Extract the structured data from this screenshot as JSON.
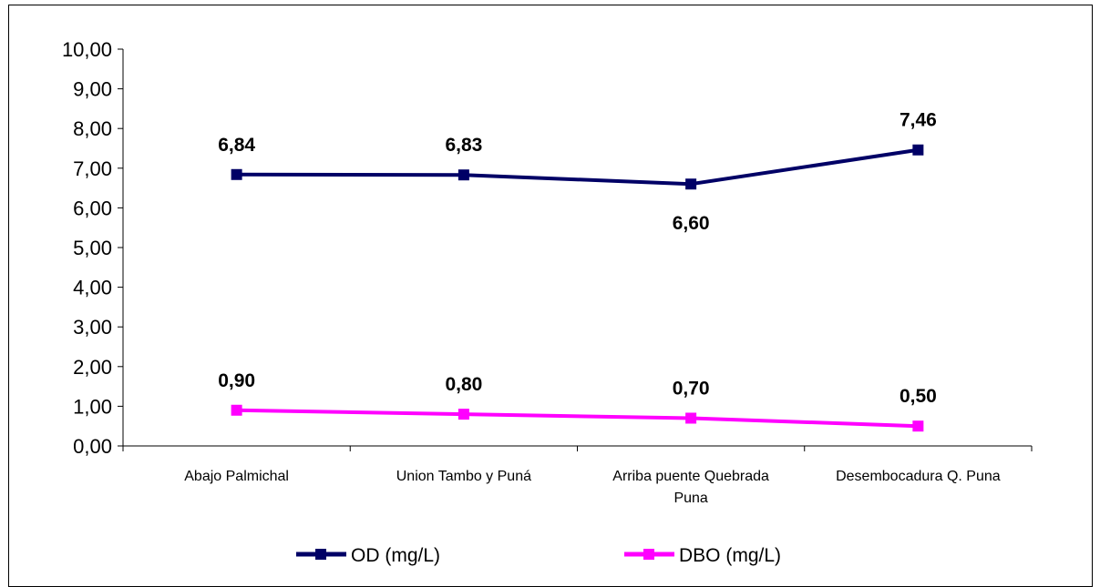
{
  "chart_data": {
    "type": "line",
    "categories": [
      [
        "Abajo Palmichal"
      ],
      [
        "Union Tambo y Puná"
      ],
      [
        "Arriba puente Quebrada",
        "Puna"
      ],
      [
        "Desembocadura Q. Puna"
      ]
    ],
    "series": [
      {
        "name": "OD (mg/L)",
        "color": "#000066",
        "values": [
          6.84,
          6.83,
          6.6,
          7.46
        ],
        "labels": [
          "6,84",
          "6,83",
          "6,60",
          "7,46"
        ],
        "label_position": [
          "above",
          "above",
          "below",
          "above"
        ]
      },
      {
        "name": "DBO (mg/L)",
        "color": "#ff00ff",
        "values": [
          0.9,
          0.8,
          0.7,
          0.5
        ],
        "labels": [
          "0,90",
          "0,80",
          "0,70",
          "0,50"
        ],
        "label_position": [
          "above",
          "above",
          "above",
          "above"
        ]
      }
    ],
    "ylim": [
      0,
      10
    ],
    "yticks": [
      "0,00",
      "1,00",
      "2,00",
      "3,00",
      "4,00",
      "5,00",
      "6,00",
      "7,00",
      "8,00",
      "9,00",
      "10,00"
    ],
    "grid": false,
    "legend": "bottom"
  }
}
